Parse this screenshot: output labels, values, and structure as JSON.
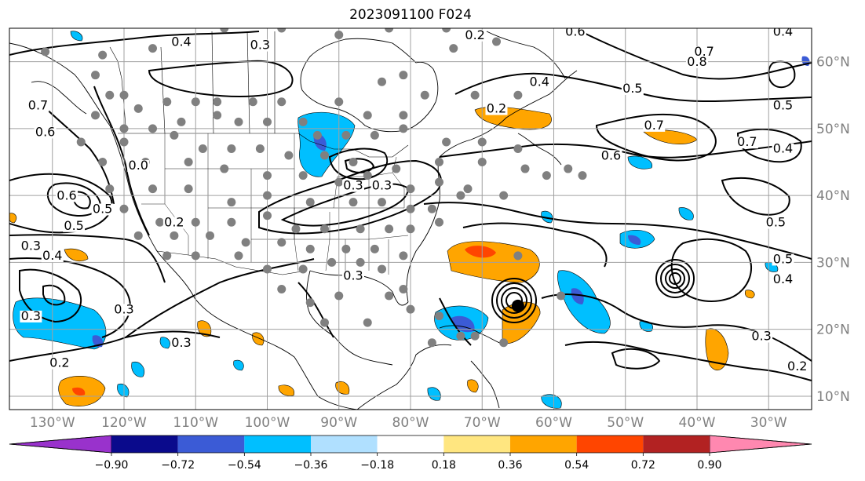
{
  "title": "2023091100 F024",
  "map": {
    "projection": "PlateCarree",
    "extent": {
      "lon_min": -136,
      "lon_max": -24,
      "lat_min": 8,
      "lat_max": 65
    },
    "lat_labels": [
      "10°N",
      "20°N",
      "30°N",
      "40°N",
      "50°N",
      "60°N"
    ],
    "lat_values": [
      10,
      20,
      30,
      40,
      50,
      60
    ],
    "lon_labels": [
      "130°W",
      "120°W",
      "110°W",
      "100°W",
      "90°W",
      "80°W",
      "70°W",
      "60°W",
      "50°W",
      "40°W",
      "30°W"
    ],
    "lon_values": [
      -130,
      -120,
      -110,
      -100,
      -90,
      -80,
      -70,
      -60,
      -50,
      -40,
      -30
    ],
    "gridlines": true,
    "contour_labels": [
      {
        "text": "0.4",
        "lon": -112,
        "lat": 62.5
      },
      {
        "text": "0.3",
        "lon": -101,
        "lat": 62
      },
      {
        "text": "0.2",
        "lon": -71,
        "lat": 63.5
      },
      {
        "text": "0.6",
        "lon": -57,
        "lat": 64
      },
      {
        "text": "0.4",
        "lon": -28,
        "lat": 64
      },
      {
        "text": "0.7",
        "lon": -39,
        "lat": 61
      },
      {
        "text": "0.8",
        "lon": -40,
        "lat": 59.5
      },
      {
        "text": "0.4",
        "lon": -62,
        "lat": 56.5
      },
      {
        "text": "0.5",
        "lon": -49,
        "lat": 55.5
      },
      {
        "text": "0.5",
        "lon": -28,
        "lat": 53
      },
      {
        "text": "0.2",
        "lon": -68,
        "lat": 52.5
      },
      {
        "text": "0.7",
        "lon": -46,
        "lat": 50
      },
      {
        "text": "0.7",
        "lon": -33,
        "lat": 47.5
      },
      {
        "text": "0.4",
        "lon": -28,
        "lat": 46.5
      },
      {
        "text": "0.6",
        "lon": -52,
        "lat": 45.5
      },
      {
        "text": "0.7",
        "lon": -132,
        "lat": 53
      },
      {
        "text": "0.6",
        "lon": -131,
        "lat": 49
      },
      {
        "text": "0.0",
        "lon": -118,
        "lat": 44
      },
      {
        "text": "0.6",
        "lon": -128,
        "lat": 39.5
      },
      {
        "text": "0.5",
        "lon": -123,
        "lat": 37.5
      },
      {
        "text": "0.5",
        "lon": -127,
        "lat": 35
      },
      {
        "text": "0.3",
        "lon": -133,
        "lat": 32
      },
      {
        "text": "0.4",
        "lon": -130,
        "lat": 30.5
      },
      {
        "text": "0.2",
        "lon": -113,
        "lat": 35.5
      },
      {
        "text": "0.3",
        "lon": -88,
        "lat": 41
      },
      {
        "text": "0.3",
        "lon": -84,
        "lat": 41
      },
      {
        "text": "0.3",
        "lon": -88,
        "lat": 27.5
      },
      {
        "text": "0.5",
        "lon": -29,
        "lat": 35.5
      },
      {
        "text": "0.5",
        "lon": -28,
        "lat": 30
      },
      {
        "text": "0.4",
        "lon": -28,
        "lat": 27
      },
      {
        "text": "0.3",
        "lon": -133,
        "lat": 21.5
      },
      {
        "text": "0.3",
        "lon": -120,
        "lat": 22.5
      },
      {
        "text": "0.3",
        "lon": -112,
        "lat": 17.5
      },
      {
        "text": "0.2",
        "lon": -129,
        "lat": 14.5
      },
      {
        "text": "0.3",
        "lon": -31,
        "lat": 18.5
      },
      {
        "text": "0.2",
        "lon": -26,
        "lat": 14
      }
    ],
    "gray_dots": [
      [
        -131,
        61.5
      ],
      [
        -123,
        61
      ],
      [
        -116,
        62
      ],
      [
        -106,
        65
      ],
      [
        -98,
        65
      ],
      [
        -90,
        64
      ],
      [
        -83,
        65
      ],
      [
        -75,
        65
      ],
      [
        -74,
        62
      ],
      [
        -68,
        63
      ],
      [
        -81,
        58
      ],
      [
        -84,
        57
      ],
      [
        -78,
        55
      ],
      [
        -71,
        55
      ],
      [
        -65,
        55
      ],
      [
        -124,
        58
      ],
      [
        -122,
        55
      ],
      [
        -120,
        55
      ],
      [
        -118,
        53
      ],
      [
        -114,
        54
      ],
      [
        -110,
        54
      ],
      [
        -107,
        54
      ],
      [
        -102,
        54
      ],
      [
        -98,
        54
      ],
      [
        -95,
        51
      ],
      [
        -90,
        54
      ],
      [
        -86,
        52
      ],
      [
        -81,
        52
      ],
      [
        -124,
        52
      ],
      [
        -120,
        50
      ],
      [
        -116,
        50
      ],
      [
        -112,
        51
      ],
      [
        -107,
        52
      ],
      [
        -104,
        51
      ],
      [
        -100,
        51
      ],
      [
        -93,
        49
      ],
      [
        -89,
        49
      ],
      [
        -85,
        49
      ],
      [
        -81,
        50
      ],
      [
        -75,
        48
      ],
      [
        -70,
        48
      ],
      [
        -65,
        47
      ],
      [
        -126,
        48
      ],
      [
        -120,
        48
      ],
      [
        -113,
        49
      ],
      [
        -109,
        47
      ],
      [
        -105,
        47
      ],
      [
        -101,
        47
      ],
      [
        -97,
        46
      ],
      [
        -92,
        46
      ],
      [
        -88,
        45
      ],
      [
        -82,
        44
      ],
      [
        -76,
        45
      ],
      [
        -70,
        45
      ],
      [
        -64,
        44
      ],
      [
        -58,
        44
      ],
      [
        -123,
        45
      ],
      [
        -117,
        45
      ],
      [
        -111,
        45
      ],
      [
        -106,
        44
      ],
      [
        -100,
        43
      ],
      [
        -95,
        43
      ],
      [
        -90,
        42
      ],
      [
        -86,
        43
      ],
      [
        -80,
        41
      ],
      [
        -76,
        42
      ],
      [
        -72,
        41
      ],
      [
        -67,
        40
      ],
      [
        -61,
        43
      ],
      [
        -56,
        43
      ],
      [
        -122,
        41
      ],
      [
        -116,
        41
      ],
      [
        -111,
        41
      ],
      [
        -105,
        39
      ],
      [
        -100,
        40
      ],
      [
        -94,
        39
      ],
      [
        -88,
        39
      ],
      [
        -84,
        39
      ],
      [
        -80,
        38
      ],
      [
        -77,
        38
      ],
      [
        -73,
        40
      ],
      [
        -120,
        38
      ],
      [
        -115,
        36
      ],
      [
        -110,
        36
      ],
      [
        -105,
        36
      ],
      [
        -100,
        37
      ],
      [
        -96,
        35
      ],
      [
        -92,
        35
      ],
      [
        -87,
        35
      ],
      [
        -83,
        35
      ],
      [
        -80,
        35
      ],
      [
        -76,
        36
      ],
      [
        -118,
        34
      ],
      [
        -113,
        34
      ],
      [
        -108,
        34
      ],
      [
        -103,
        33
      ],
      [
        -98,
        33
      ],
      [
        -94,
        32
      ],
      [
        -89,
        32
      ],
      [
        -85,
        32
      ],
      [
        -81,
        31
      ],
      [
        -114,
        31
      ],
      [
        -110,
        31
      ],
      [
        -104,
        31
      ],
      [
        -100,
        29
      ],
      [
        -95,
        29
      ],
      [
        -91,
        30
      ],
      [
        -87,
        30
      ],
      [
        -84,
        29
      ],
      [
        -98,
        26
      ],
      [
        -94,
        24
      ],
      [
        -90,
        25
      ],
      [
        -83,
        25
      ],
      [
        -81,
        26
      ],
      [
        -80,
        23
      ],
      [
        -76,
        22
      ],
      [
        -73,
        19
      ],
      [
        -71,
        19
      ],
      [
        -67,
        18
      ],
      [
        -65,
        31
      ],
      [
        -59,
        25
      ],
      [
        -92,
        21
      ],
      [
        -86,
        21
      ],
      [
        -77,
        18
      ]
    ],
    "storm": {
      "name": "",
      "lon": -65,
      "lat": 23.5
    }
  },
  "colorbar": {
    "tick_labels": [
      "−0.90",
      "−0.72",
      "−0.54",
      "−0.36",
      "−0.18",
      "0.18",
      "0.36",
      "0.54",
      "0.72",
      "0.90"
    ],
    "tick_values": [
      -0.9,
      -0.72,
      -0.54,
      -0.36,
      -0.18,
      0.18,
      0.36,
      0.54,
      0.72,
      0.9
    ],
    "colors": [
      "#9932cc",
      "#0a0a8c",
      "#3b5bd6",
      "#00bfff",
      "#b0e0ff",
      "#ffffff",
      "#ffe680",
      "#ffa500",
      "#ff4500",
      "#b22222",
      "#ff88b0"
    ],
    "extend": "both"
  }
}
